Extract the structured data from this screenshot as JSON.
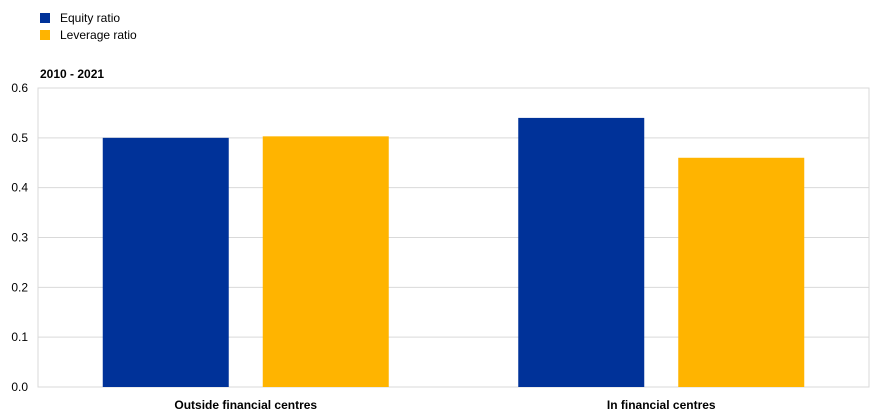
{
  "chart_data": {
    "type": "bar",
    "subtitle": "2010 - 2021",
    "categories": [
      "Outside financial centres",
      "In financial centres"
    ],
    "series": [
      {
        "name": "Equity ratio",
        "color": "#003299",
        "values": [
          0.5,
          0.54
        ]
      },
      {
        "name": "Leverage ratio",
        "color": "#FFB400",
        "values": [
          0.503,
          0.46
        ]
      }
    ],
    "ylim": [
      0,
      0.6
    ],
    "yticks": [
      "0.0",
      "0.1",
      "0.2",
      "0.3",
      "0.4",
      "0.5",
      "0.6"
    ],
    "grid": true,
    "legend_position": "top-left"
  }
}
